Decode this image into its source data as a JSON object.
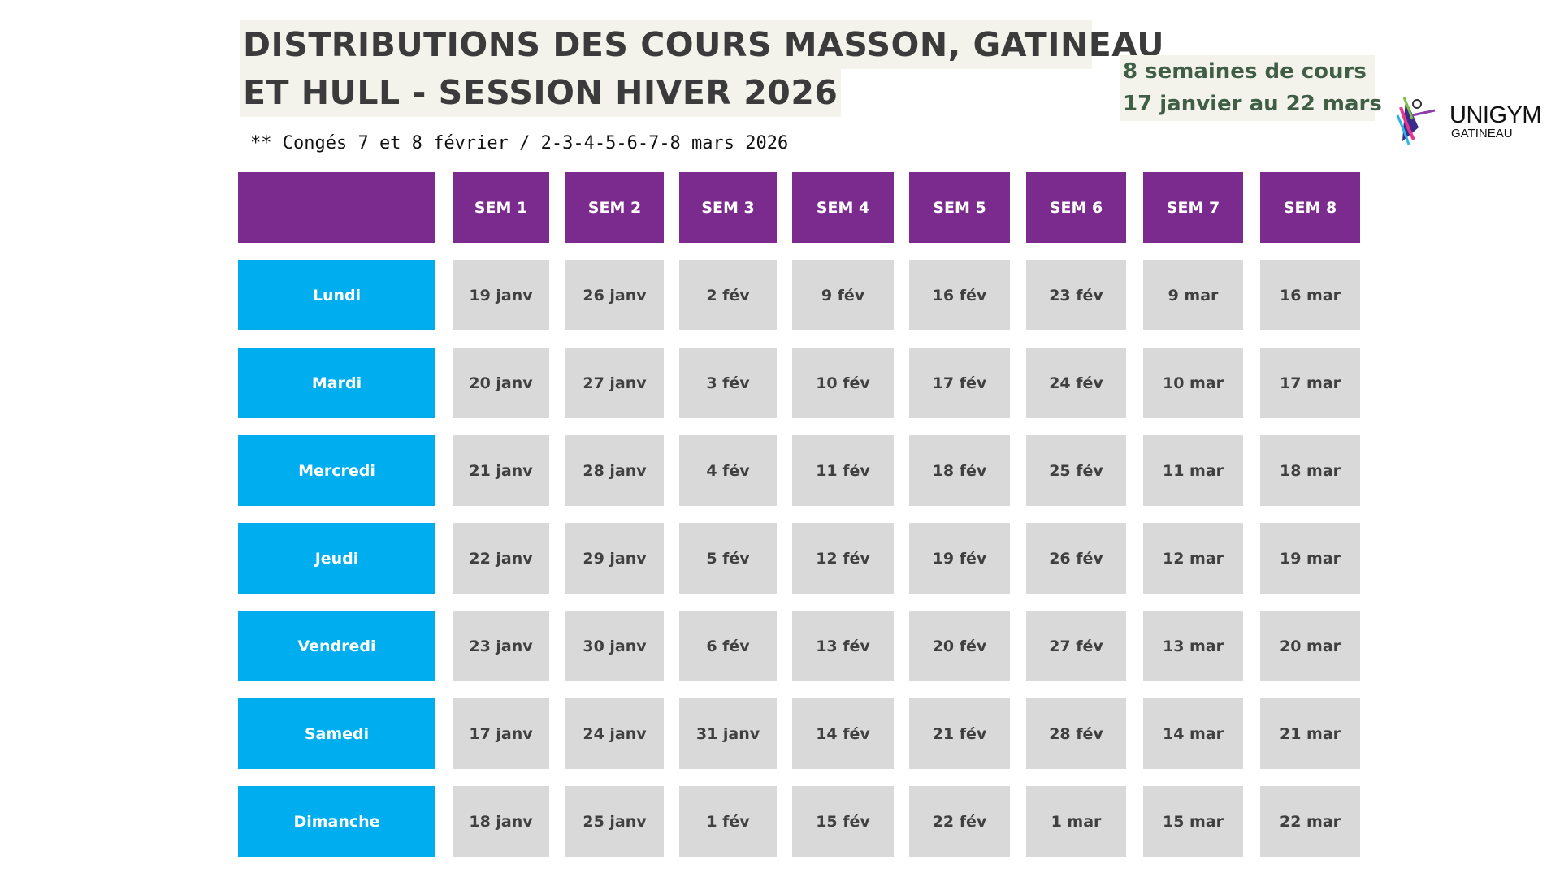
{
  "title": {
    "line1": "DISTRIBUTIONS DES COURS MASSON, GATINEAU",
    "line2": "ET HULL - SESSION HIVER 2026"
  },
  "note": "** Congés 7 et 8 février / 2-3-4-5-6-7-8 mars 2026",
  "info": {
    "line1": "8 semaines de cours",
    "line2": "17 janvier au 22 mars"
  },
  "logo": {
    "name": "UNIGYM",
    "sub": "GATINEAU"
  },
  "colors": {
    "header": "#7B2A8E",
    "day": "#00AEEF",
    "date": "#D9D9D9"
  },
  "table": {
    "weeks": [
      "SEM 1",
      "SEM 2",
      "SEM 3",
      "SEM 4",
      "SEM 5",
      "SEM 6",
      "SEM 7",
      "SEM 8"
    ],
    "rows": [
      {
        "day": "Lundi",
        "dates": [
          "19 janv",
          "26 janv",
          "2 fév",
          "9 fév",
          "16 fév",
          "23 fév",
          "9 mar",
          "16 mar"
        ]
      },
      {
        "day": "Mardi",
        "dates": [
          "20 janv",
          "27 janv",
          "3 fév",
          "10 fév",
          "17 fév",
          "24 fév",
          "10 mar",
          "17 mar"
        ]
      },
      {
        "day": "Mercredi",
        "dates": [
          "21 janv",
          "28 janv",
          "4 fév",
          "11 fév",
          "18 fév",
          "25 fév",
          "11 mar",
          "18 mar"
        ]
      },
      {
        "day": "Jeudi",
        "dates": [
          "22 janv",
          "29 janv",
          "5 fév",
          "12 fév",
          "19 fév",
          "26 fév",
          "12 mar",
          "19 mar"
        ]
      },
      {
        "day": "Vendredi",
        "dates": [
          "23 janv",
          "30 janv",
          "6 fév",
          "13 fév",
          "20 fév",
          "27 fév",
          "13 mar",
          "20 mar"
        ]
      },
      {
        "day": "Samedi",
        "dates": [
          "17 janv",
          "24 janv",
          "31 janv",
          "14 fév",
          "21 fév",
          "28 fév",
          "14 mar",
          "21 mar"
        ]
      },
      {
        "day": "Dimanche",
        "dates": [
          "18 janv",
          "25 janv",
          "1 fév",
          "15 fév",
          "22 fév",
          "1 mar",
          "15 mar",
          "22 mar"
        ]
      }
    ]
  }
}
